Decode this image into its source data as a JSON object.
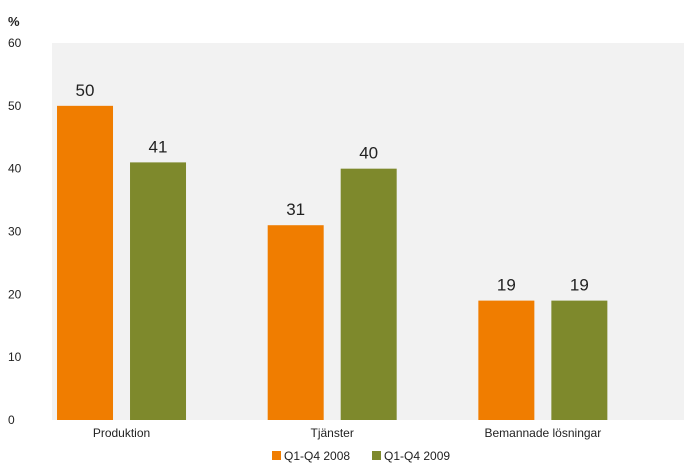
{
  "chart_data": {
    "type": "bar",
    "title": "",
    "ylabel": "%",
    "xlabel": "",
    "ylim": [
      0,
      60
    ],
    "yticks": [
      0,
      10,
      20,
      30,
      40,
      50,
      60
    ],
    "categories": [
      "Produktion",
      "Tjänster",
      "Bemannade lösningar"
    ],
    "series": [
      {
        "name": "Q1-Q4 2008",
        "color": "#f07d00",
        "values": [
          50,
          31,
          19
        ]
      },
      {
        "name": "Q1-Q4 2009",
        "color": "#7e892c",
        "values": [
          41,
          40,
          19
        ]
      }
    ],
    "grid": false,
    "plot_background": "#f2f2f2",
    "legend_position": "bottom"
  }
}
